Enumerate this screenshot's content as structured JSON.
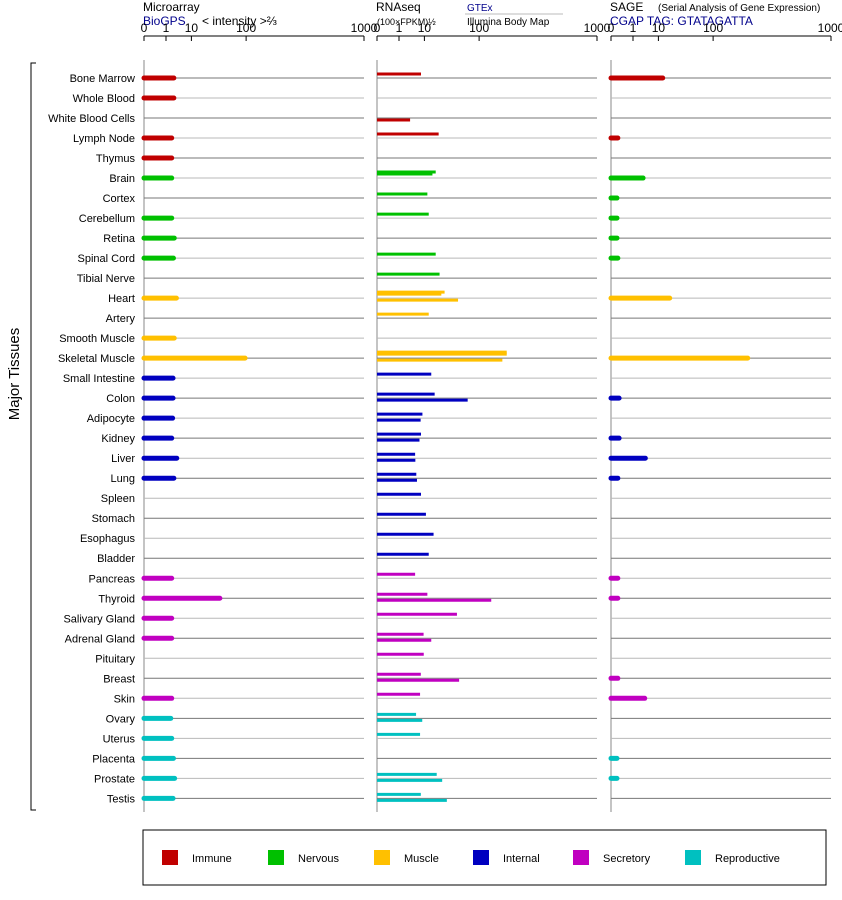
{
  "panels": [
    {
      "title": "Microarray",
      "subtitle": "BioGPS",
      "subtitle_color": "#00008b",
      "extra": "< intensity >⅔",
      "source_a": "",
      "source_b": ""
    },
    {
      "title": "RNAseq",
      "subtitle": "(100×FPKM)½",
      "subtitle_color": "#000000",
      "extra": "",
      "source_a": "GTEx",
      "source_b": "Illumina Body Map"
    },
    {
      "title": "SAGE",
      "subtitle": "CGAP TAG: GTATAGATTA",
      "subtitle_color": "#00008b",
      "extra": "(Serial Analysis of Gene Expression)",
      "source_a": "",
      "source_b": ""
    }
  ],
  "side_label": "Major Tissues",
  "legend": [
    {
      "label": "Immune",
      "color": "#c00000"
    },
    {
      "label": "Nervous",
      "color": "#00c000"
    },
    {
      "label": "Muscle",
      "color": "#ffc000"
    },
    {
      "label": "Internal",
      "color": "#0000c0"
    },
    {
      "label": "Secretory",
      "color": "#c000c0"
    },
    {
      "label": "Reproductive",
      "color": "#00c0c0"
    }
  ],
  "chart_data": {
    "type": "bar",
    "orientation": "horizontal",
    "axis_ticks": [
      0,
      1,
      10,
      100,
      1000
    ],
    "axis_scale": "power 1/3",
    "xlim": [
      0,
      1000
    ],
    "categories": [
      "Bone Marrow",
      "Whole Blood",
      "White Blood Cells",
      "Lymph Node",
      "Thymus",
      "Brain",
      "Cortex",
      "Cerebellum",
      "Retina",
      "Spinal Cord",
      "Tibial Nerve",
      "Heart",
      "Artery",
      "Smooth Muscle",
      "Skeletal Muscle",
      "Small Intestine",
      "Colon",
      "Adipocyte",
      "Kidney",
      "Liver",
      "Lung",
      "Spleen",
      "Stomach",
      "Esophagus",
      "Bladder",
      "Pancreas",
      "Thyroid",
      "Salivary Gland",
      "Adrenal Gland",
      "Pituitary",
      "Breast",
      "Skin",
      "Ovary",
      "Uterus",
      "Placenta",
      "Prostate",
      "Testis"
    ],
    "groups": [
      "Immune",
      "Immune",
      "Immune",
      "Immune",
      "Immune",
      "Nervous",
      "Nervous",
      "Nervous",
      "Nervous",
      "Nervous",
      "Nervous",
      "Muscle",
      "Muscle",
      "Muscle",
      "Muscle",
      "Internal",
      "Internal",
      "Internal",
      "Internal",
      "Internal",
      "Internal",
      "Internal",
      "Internal",
      "Internal",
      "Internal",
      "Secretory",
      "Secretory",
      "Secretory",
      "Secretory",
      "Secretory",
      "Secretory",
      "Secretory",
      "Reproductive",
      "Reproductive",
      "Reproductive",
      "Reproductive",
      "Reproductive"
    ],
    "series": [
      {
        "name": "Microarray",
        "values": [
          2.5,
          2.5,
          null,
          2,
          2,
          2,
          null,
          2,
          2.6,
          2.4,
          null,
          3.2,
          null,
          2.6,
          97,
          2.3,
          2.3,
          2.2,
          2,
          3.3,
          2.5,
          null,
          null,
          null,
          null,
          2,
          41,
          2,
          2,
          null,
          null,
          2,
          1.8,
          2,
          2.4,
          2.7,
          2.3
        ]
      },
      {
        "name": "RNAseq GTEx",
        "values": [
          null,
          null,
          null,
          null,
          null,
          19,
          null,
          null,
          null,
          null,
          null,
          29,
          null,
          null,
          205,
          null,
          null,
          null,
          null,
          null,
          null,
          null,
          null,
          null,
          null,
          null,
          null,
          null,
          null,
          null,
          null,
          null,
          null,
          null,
          null,
          null,
          null
        ]
      },
      {
        "name": "RNAseq GTEx",
        "values": [
          8,
          null,
          null,
          22,
          null,
          16,
          12,
          13,
          null,
          19,
          23,
          25,
          13,
          null,
          205,
          15,
          18,
          8.8,
          8,
          5.2,
          5.7,
          8,
          11,
          17,
          13,
          5.2,
          12,
          48,
          9.5,
          9.6,
          7.9,
          7.5,
          5.6,
          7.5,
          null,
          20,
          7.9
        ]
      },
      {
        "name": "RNAseq Illumina Body Map",
        "values": [
          null,
          null,
          3.4,
          null,
          null,
          null,
          null,
          null,
          null,
          null,
          null,
          50,
          null,
          null,
          185,
          null,
          70,
          7.8,
          7.2,
          5.3,
          6,
          null,
          null,
          null,
          null,
          null,
          140,
          null,
          15,
          null,
          52,
          null,
          8.7,
          null,
          null,
          26,
          32
        ]
      },
      {
        "name": "SAGE",
        "values": [
          13,
          null,
          null,
          0.03,
          null,
          3.1,
          0.02,
          0.02,
          0.02,
          0.03,
          null,
          19,
          null,
          null,
          240,
          null,
          0.05,
          null,
          0.05,
          3.8,
          0.03,
          null,
          null,
          null,
          null,
          0.03,
          0.03,
          null,
          null,
          null,
          0.03,
          3.6,
          null,
          null,
          0.02,
          0.02,
          null
        ]
      }
    ]
  }
}
